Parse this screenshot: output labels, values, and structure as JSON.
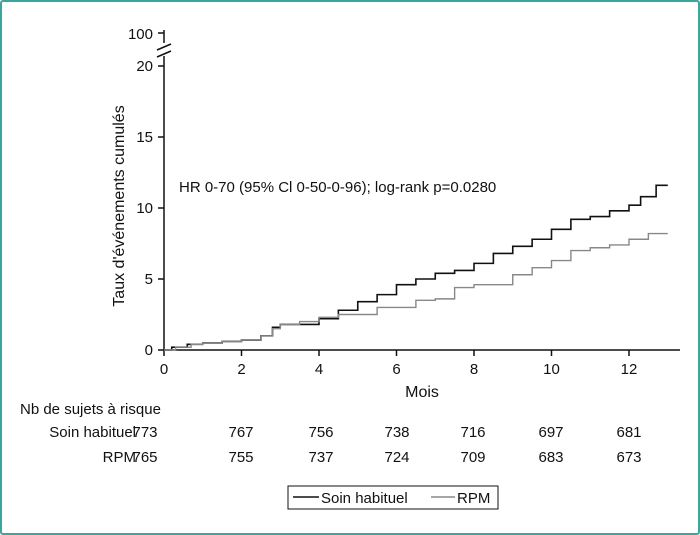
{
  "chart_data": {
    "type": "line",
    "xlabel": "Mois",
    "ylabel": "Taux d'événements cumulés",
    "xlim": [
      0,
      13
    ],
    "ylim": [
      0,
      20
    ],
    "x_ticks": [
      "0",
      "2",
      "4",
      "6",
      "8",
      "10",
      "12"
    ],
    "y_ticks": [
      "0",
      "5",
      "10",
      "15",
      "20"
    ],
    "y_break_label": "100",
    "annotation": "HR 0-70 (95% Cl 0-50-0-96); log-rank p=0.0280",
    "series": [
      {
        "name": "Soin habituel",
        "color": "#111111",
        "points": [
          [
            0,
            0
          ],
          [
            0.2,
            0.2
          ],
          [
            0.6,
            0.4
          ],
          [
            1,
            0.5
          ],
          [
            1.5,
            0.6
          ],
          [
            2,
            0.7
          ],
          [
            2.5,
            1.0
          ],
          [
            2.8,
            1.6
          ],
          [
            3,
            1.8
          ],
          [
            3.5,
            1.8
          ],
          [
            4,
            2.2
          ],
          [
            4.5,
            2.8
          ],
          [
            5,
            3.4
          ],
          [
            5.5,
            3.9
          ],
          [
            6,
            4.6
          ],
          [
            6.5,
            5.0
          ],
          [
            7,
            5.4
          ],
          [
            7.5,
            5.6
          ],
          [
            8,
            6.1
          ],
          [
            8.5,
            6.8
          ],
          [
            9,
            7.3
          ],
          [
            9.5,
            7.8
          ],
          [
            10,
            8.5
          ],
          [
            10.5,
            9.2
          ],
          [
            11,
            9.4
          ],
          [
            11.5,
            9.8
          ],
          [
            12,
            10.2
          ],
          [
            12.3,
            10.8
          ],
          [
            12.7,
            11.6
          ],
          [
            13,
            11.6
          ]
        ]
      },
      {
        "name": "RPM",
        "color": "#888888",
        "points": [
          [
            0,
            0
          ],
          [
            0.3,
            0.2
          ],
          [
            0.7,
            0.4
          ],
          [
            1,
            0.5
          ],
          [
            1.5,
            0.6
          ],
          [
            2,
            0.7
          ],
          [
            2.5,
            1.0
          ],
          [
            2.8,
            1.5
          ],
          [
            3,
            1.8
          ],
          [
            3.5,
            2.0
          ],
          [
            4,
            2.3
          ],
          [
            4.5,
            2.5
          ],
          [
            5,
            2.5
          ],
          [
            5.5,
            3.0
          ],
          [
            6,
            3.0
          ],
          [
            6.5,
            3.5
          ],
          [
            7,
            3.6
          ],
          [
            7.5,
            4.4
          ],
          [
            8,
            4.6
          ],
          [
            8.5,
            4.6
          ],
          [
            9,
            5.3
          ],
          [
            9.5,
            5.8
          ],
          [
            10,
            6.3
          ],
          [
            10.5,
            7.0
          ],
          [
            11,
            7.2
          ],
          [
            11.5,
            7.4
          ],
          [
            12,
            7.8
          ],
          [
            12.5,
            8.2
          ],
          [
            13,
            8.2
          ]
        ]
      }
    ],
    "risk_table": {
      "title": "Nb de sujets à risque",
      "rows": [
        {
          "label": "Soin habituel",
          "values": [
            "773",
            "767",
            "756",
            "738",
            "716",
            "697",
            "681"
          ]
        },
        {
          "label": "RPM",
          "values": [
            "765",
            "755",
            "737",
            "724",
            "709",
            "683",
            "673"
          ]
        }
      ]
    },
    "legend": {
      "placement": "bottom-center",
      "items": [
        {
          "label": "Soin habituel",
          "color": "#111111"
        },
        {
          "label": "RPM",
          "color": "#888888"
        }
      ]
    }
  }
}
